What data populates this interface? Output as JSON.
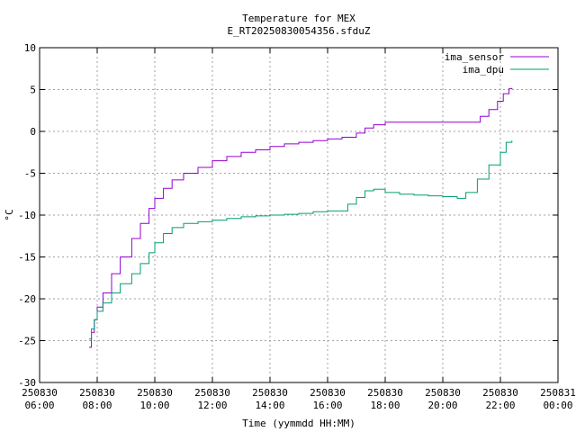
{
  "chart_data": {
    "type": "line",
    "title": "Temperature for MEX",
    "subtitle": "E_RT20250830054356.sfduZ",
    "xlabel": "Time (yymmdd HH:MM)",
    "ylabel": "°C",
    "ylim": [
      -30,
      10
    ],
    "yticks": [
      -30,
      -25,
      -20,
      -15,
      -10,
      -5,
      0,
      5,
      10
    ],
    "xlim_hours": [
      6,
      24
    ],
    "xticks": [
      {
        "h": 6,
        "date": "250830",
        "time": "06:00"
      },
      {
        "h": 8,
        "date": "250830",
        "time": "08:00"
      },
      {
        "h": 10,
        "date": "250830",
        "time": "10:00"
      },
      {
        "h": 12,
        "date": "250830",
        "time": "12:00"
      },
      {
        "h": 14,
        "date": "250830",
        "time": "14:00"
      },
      {
        "h": 16,
        "date": "250830",
        "time": "16:00"
      },
      {
        "h": 18,
        "date": "250830",
        "time": "18:00"
      },
      {
        "h": 20,
        "date": "250830",
        "time": "20:00"
      },
      {
        "h": 22,
        "date": "250830",
        "time": "22:00"
      },
      {
        "h": 24,
        "date": "250831",
        "time": "00:00"
      }
    ],
    "grid": true,
    "legend_position": "top-right",
    "series": [
      {
        "name": "ima_sensor",
        "color": "#9400d3",
        "x": [
          7.72,
          7.8,
          7.9,
          8.0,
          8.2,
          8.5,
          8.8,
          9.2,
          9.5,
          9.8,
          10.0,
          10.3,
          10.6,
          11.0,
          11.5,
          12.0,
          12.5,
          13.0,
          13.5,
          14.0,
          14.5,
          15.0,
          15.5,
          16.0,
          16.5,
          17.0,
          17.3,
          17.6,
          18.0,
          18.5,
          19.0,
          19.5,
          20.0,
          20.5,
          21.0,
          21.3,
          21.6,
          21.9,
          22.1,
          22.3,
          22.4
        ],
        "y": [
          -25.8,
          -24.0,
          -22.5,
          -21.0,
          -19.3,
          -17.0,
          -15.0,
          -12.8,
          -11.0,
          -9.2,
          -8.0,
          -6.8,
          -5.8,
          -5.0,
          -4.3,
          -3.5,
          -3.0,
          -2.5,
          -2.2,
          -1.8,
          -1.5,
          -1.3,
          -1.1,
          -0.9,
          -0.7,
          -0.2,
          0.4,
          0.8,
          1.1,
          1.1,
          1.1,
          1.1,
          1.1,
          1.1,
          1.1,
          1.8,
          2.6,
          3.6,
          4.5,
          5.1,
          5.2
        ]
      },
      {
        "name": "ima_dpu",
        "color": "#009e73",
        "x": [
          7.72,
          7.8,
          7.9,
          8.0,
          8.2,
          8.5,
          8.8,
          9.2,
          9.5,
          9.8,
          10.0,
          10.3,
          10.6,
          11.0,
          11.5,
          12.0,
          12.5,
          13.0,
          13.5,
          14.0,
          14.5,
          15.0,
          15.5,
          16.0,
          16.3,
          16.7,
          17.0,
          17.3,
          17.6,
          18.0,
          18.5,
          19.0,
          19.5,
          20.0,
          20.5,
          20.8,
          21.2,
          21.6,
          22.0,
          22.2,
          22.4
        ],
        "y": [
          -24.8,
          -23.6,
          -22.5,
          -21.5,
          -20.5,
          -19.3,
          -18.2,
          -17.0,
          -15.8,
          -14.5,
          -13.3,
          -12.2,
          -11.5,
          -11.0,
          -10.8,
          -10.6,
          -10.4,
          -10.2,
          -10.1,
          -10.0,
          -9.9,
          -9.8,
          -9.6,
          -9.5,
          -9.5,
          -8.7,
          -7.9,
          -7.1,
          -6.9,
          -7.3,
          -7.5,
          -7.6,
          -7.7,
          -7.8,
          -8.0,
          -7.3,
          -5.7,
          -4.0,
          -2.5,
          -1.3,
          -1.1
        ]
      }
    ]
  }
}
